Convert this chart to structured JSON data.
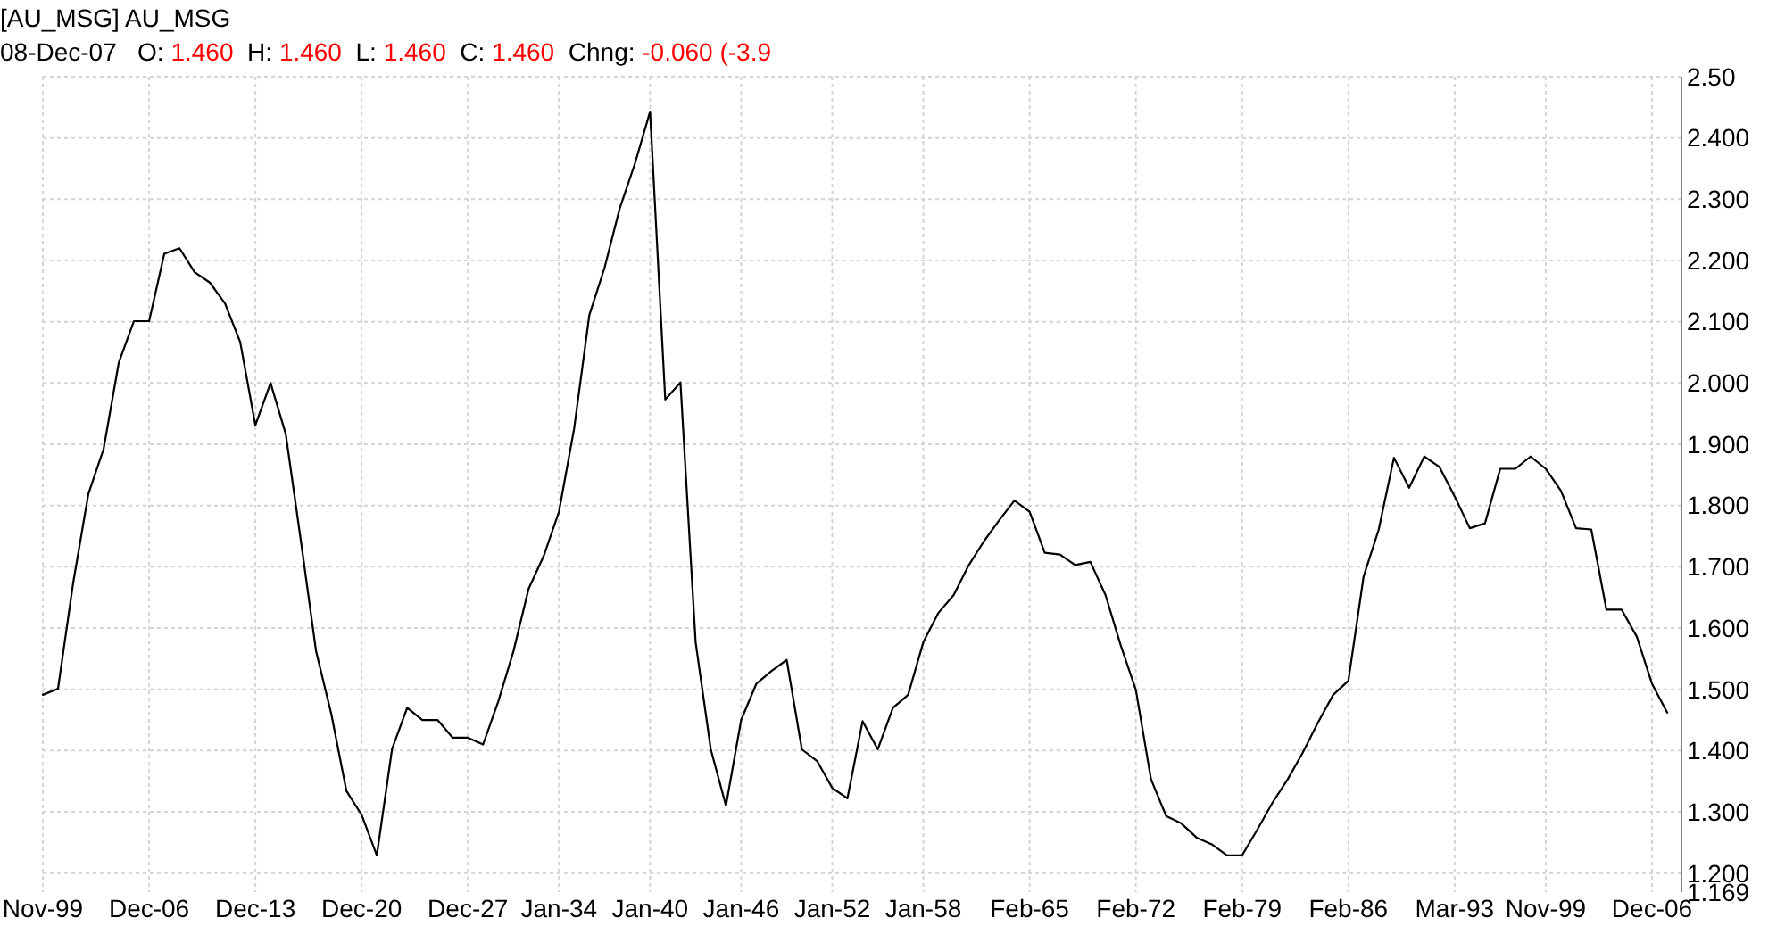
{
  "chart_data": {
    "type": "line",
    "title": "[AU_MSG] AU_MSG",
    "subtitle": "08-Dec-07   O: 1.460  H: 1.460  L: 1.460  C: 1.460  Chng: -0.060 (-3.9",
    "categories": [
      "Nov-99",
      null,
      null,
      null,
      null,
      null,
      null,
      "Dec-06",
      null,
      null,
      null,
      null,
      null,
      null,
      "Dec-13",
      null,
      null,
      null,
      null,
      null,
      null,
      "Dec-20",
      null,
      null,
      null,
      null,
      null,
      null,
      "Dec-27",
      null,
      null,
      null,
      null,
      null,
      "Jan-34",
      null,
      null,
      null,
      null,
      null,
      "Jan-40",
      null,
      null,
      null,
      null,
      null,
      "Jan-46",
      null,
      null,
      null,
      null,
      null,
      "Jan-52",
      null,
      null,
      null,
      null,
      null,
      "Jan-58",
      null,
      null,
      null,
      null,
      null,
      null,
      "Feb-65",
      null,
      null,
      null,
      null,
      null,
      null,
      "Feb-72",
      null,
      null,
      null,
      null,
      null,
      null,
      "Feb-79",
      null,
      null,
      null,
      null,
      null,
      null,
      "Feb-86",
      null,
      null,
      null,
      null,
      null,
      null,
      "Mar-93",
      null,
      null,
      null,
      null,
      null,
      "Nov-99",
      null,
      null,
      null,
      null,
      null,
      null,
      "Dec-06",
      null
    ],
    "series": [
      {
        "color": "#000000",
        "values": [
          1.491,
          1.501,
          1.674,
          1.819,
          1.892,
          2.033,
          2.101,
          2.101,
          2.211,
          2.22,
          2.181,
          2.164,
          2.13,
          2.067,
          1.931,
          2.0,
          1.917,
          1.742,
          1.562,
          1.46,
          1.334,
          1.295,
          1.229,
          1.402,
          1.47,
          1.45,
          1.45,
          1.421,
          1.421,
          1.41,
          1.48,
          1.562,
          1.664,
          1.718,
          1.79,
          1.926,
          2.111,
          2.188,
          2.285,
          2.358,
          2.443,
          1.973,
          2.001,
          1.577,
          1.402,
          1.31,
          1.45,
          1.509,
          1.53,
          1.548,
          1.402,
          1.383,
          1.339,
          1.322,
          1.448,
          1.402,
          1.47,
          1.491,
          1.577,
          1.625,
          1.654,
          1.703,
          1.742,
          1.776,
          1.808,
          1.79,
          1.723,
          1.72,
          1.703,
          1.708,
          1.654,
          1.572,
          1.499,
          1.353,
          1.293,
          1.281,
          1.258,
          1.247,
          1.229,
          1.229,
          1.271,
          1.315,
          1.353,
          1.397,
          1.446,
          1.491,
          1.514,
          1.684,
          1.761,
          1.878,
          1.829,
          1.88,
          1.863,
          1.815,
          1.763,
          1.771,
          1.86,
          1.86,
          1.88,
          1.86,
          1.824,
          1.763,
          1.761,
          1.63,
          1.63,
          1.586,
          1.509,
          1.462
        ]
      }
    ],
    "ylim": [
      1.169,
      2.5
    ],
    "yticks": [
      {
        "value": 1.169,
        "label": "1.169"
      },
      {
        "value": 1.2,
        "label": "1.200"
      },
      {
        "value": 1.3,
        "label": "1.300"
      },
      {
        "value": 1.4,
        "label": "1.400"
      },
      {
        "value": 1.5,
        "label": "1.500"
      },
      {
        "value": 1.6,
        "label": "1.600"
      },
      {
        "value": 1.7,
        "label": "1.700"
      },
      {
        "value": 1.8,
        "label": "1.800"
      },
      {
        "value": 1.9,
        "label": "1.900"
      },
      {
        "value": 2.0,
        "label": "2.000"
      },
      {
        "value": 2.1,
        "label": "2.100"
      },
      {
        "value": 2.2,
        "label": "2.200"
      },
      {
        "value": 2.3,
        "label": "2.300"
      },
      {
        "value": 2.4,
        "label": "2.400"
      },
      {
        "value": 2.5,
        "label": "2.50"
      }
    ],
    "grid": true,
    "marker": "none",
    "line_style": "solid"
  }
}
